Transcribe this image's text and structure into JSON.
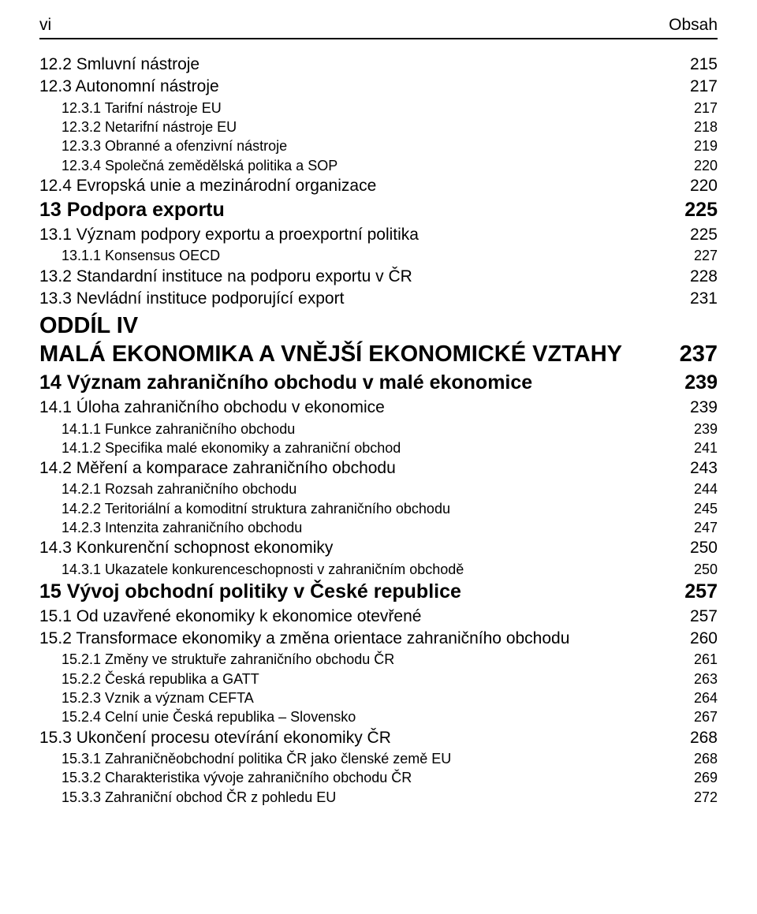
{
  "header": {
    "left": "vi",
    "right": "Obsah"
  },
  "entries": [
    {
      "cls": "section lvl-1",
      "label": "12.2 Smluvní nástroje",
      "page": "215"
    },
    {
      "cls": "section lvl-1",
      "label": "12.3 Autonomní nástroje",
      "page": "217"
    },
    {
      "cls": "subsection lvl-2",
      "label": "12.3.1 Tarifní nástroje EU",
      "page": "217"
    },
    {
      "cls": "subsection lvl-2",
      "label": "12.3.2 Netarifní nástroje EU",
      "page": "218"
    },
    {
      "cls": "subsection lvl-2",
      "label": "12.3.3 Obranné a ofenzivní nástroje",
      "page": "219"
    },
    {
      "cls": "subsection lvl-2",
      "label": "12.3.4 Společná zemědělská politika a SOP",
      "page": "220"
    },
    {
      "cls": "section lvl-1",
      "label": "12.4 Evropská unie a mezinárodní organizace",
      "page": "220"
    },
    {
      "cls": "chapter lvl-0",
      "label": "13 Podpora exportu",
      "page": "225"
    },
    {
      "cls": "section lvl-1",
      "label": "13.1 Význam podpory exportu a proexportní politika",
      "page": "225"
    },
    {
      "cls": "subsection lvl-2",
      "label": "13.1.1 Konsensus OECD",
      "page": "227"
    },
    {
      "cls": "section lvl-1",
      "label": "13.2 Standardní instituce na podporu exportu v ČR",
      "page": "228"
    },
    {
      "cls": "section lvl-1",
      "label": "13.3 Nevládní instituce podporující export",
      "page": "231"
    },
    {
      "cls": "part-label lvl-0",
      "label": "ODDÍL IV",
      "page": ""
    },
    {
      "cls": "part lvl-0",
      "label": "MALÁ EKONOMIKA A VNĚJŠÍ EKONOMICKÉ VZTAHY",
      "page": "237"
    },
    {
      "cls": "chapter lvl-0",
      "label": "14 Význam zahraničního obchodu v malé ekonomice",
      "page": "239"
    },
    {
      "cls": "section lvl-1",
      "label": "14.1 Úloha zahraničního obchodu v ekonomice",
      "page": "239"
    },
    {
      "cls": "subsection lvl-2",
      "label": "14.1.1 Funkce zahraničního obchodu",
      "page": "239"
    },
    {
      "cls": "subsection lvl-2",
      "label": "14.1.2 Specifika malé ekonomiky a zahraniční obchod",
      "page": "241"
    },
    {
      "cls": "section lvl-1",
      "label": "14.2 Měření a komparace zahraničního obchodu",
      "page": "243"
    },
    {
      "cls": "subsection lvl-2",
      "label": "14.2.1 Rozsah zahraničního obchodu",
      "page": "244"
    },
    {
      "cls": "subsection lvl-2",
      "label": "14.2.2 Teritoriální a komoditní struktura zahraničního obchodu",
      "page": "245"
    },
    {
      "cls": "subsection lvl-2",
      "label": "14.2.3 Intenzita zahraničního obchodu",
      "page": "247"
    },
    {
      "cls": "section lvl-1",
      "label": "14.3 Konkurenční schopnost ekonomiky",
      "page": "250"
    },
    {
      "cls": "subsection lvl-2",
      "label": "14.3.1 Ukazatele konkurenceschopnosti v zahraničním obchodě",
      "page": "250"
    },
    {
      "cls": "chapter lvl-0",
      "label": "15 Vývoj obchodní politiky v České republice",
      "page": "257"
    },
    {
      "cls": "section lvl-1",
      "label": "15.1 Od uzavřené ekonomiky k ekonomice otevřené",
      "page": "257"
    },
    {
      "cls": "section lvl-1",
      "label": "15.2 Transformace ekonomiky a změna orientace zahraničního obchodu",
      "page": "260"
    },
    {
      "cls": "subsection lvl-2",
      "label": "15.2.1 Změny ve struktuře zahraničního obchodu ČR",
      "page": "261"
    },
    {
      "cls": "subsection lvl-2",
      "label": "15.2.2 Česká republika a GATT",
      "page": "263"
    },
    {
      "cls": "subsection lvl-2",
      "label": "15.2.3 Vznik a význam CEFTA",
      "page": "264"
    },
    {
      "cls": "subsection lvl-2",
      "label": "15.2.4 Celní unie Česká republika – Slovensko",
      "page": "267"
    },
    {
      "cls": "section lvl-1",
      "label": "15.3 Ukončení procesu otevírání ekonomiky ČR",
      "page": "268"
    },
    {
      "cls": "subsection lvl-2",
      "label": "15.3.1 Zahraničněobchodní politika ČR jako členské země EU",
      "page": "268"
    },
    {
      "cls": "subsection lvl-2",
      "label": "15.3.2 Charakteristika vývoje zahraničního obchodu ČR",
      "page": "269"
    },
    {
      "cls": "subsection lvl-2",
      "label": "15.3.3 Zahraniční obchod ČR z pohledu EU",
      "page": "272"
    }
  ]
}
